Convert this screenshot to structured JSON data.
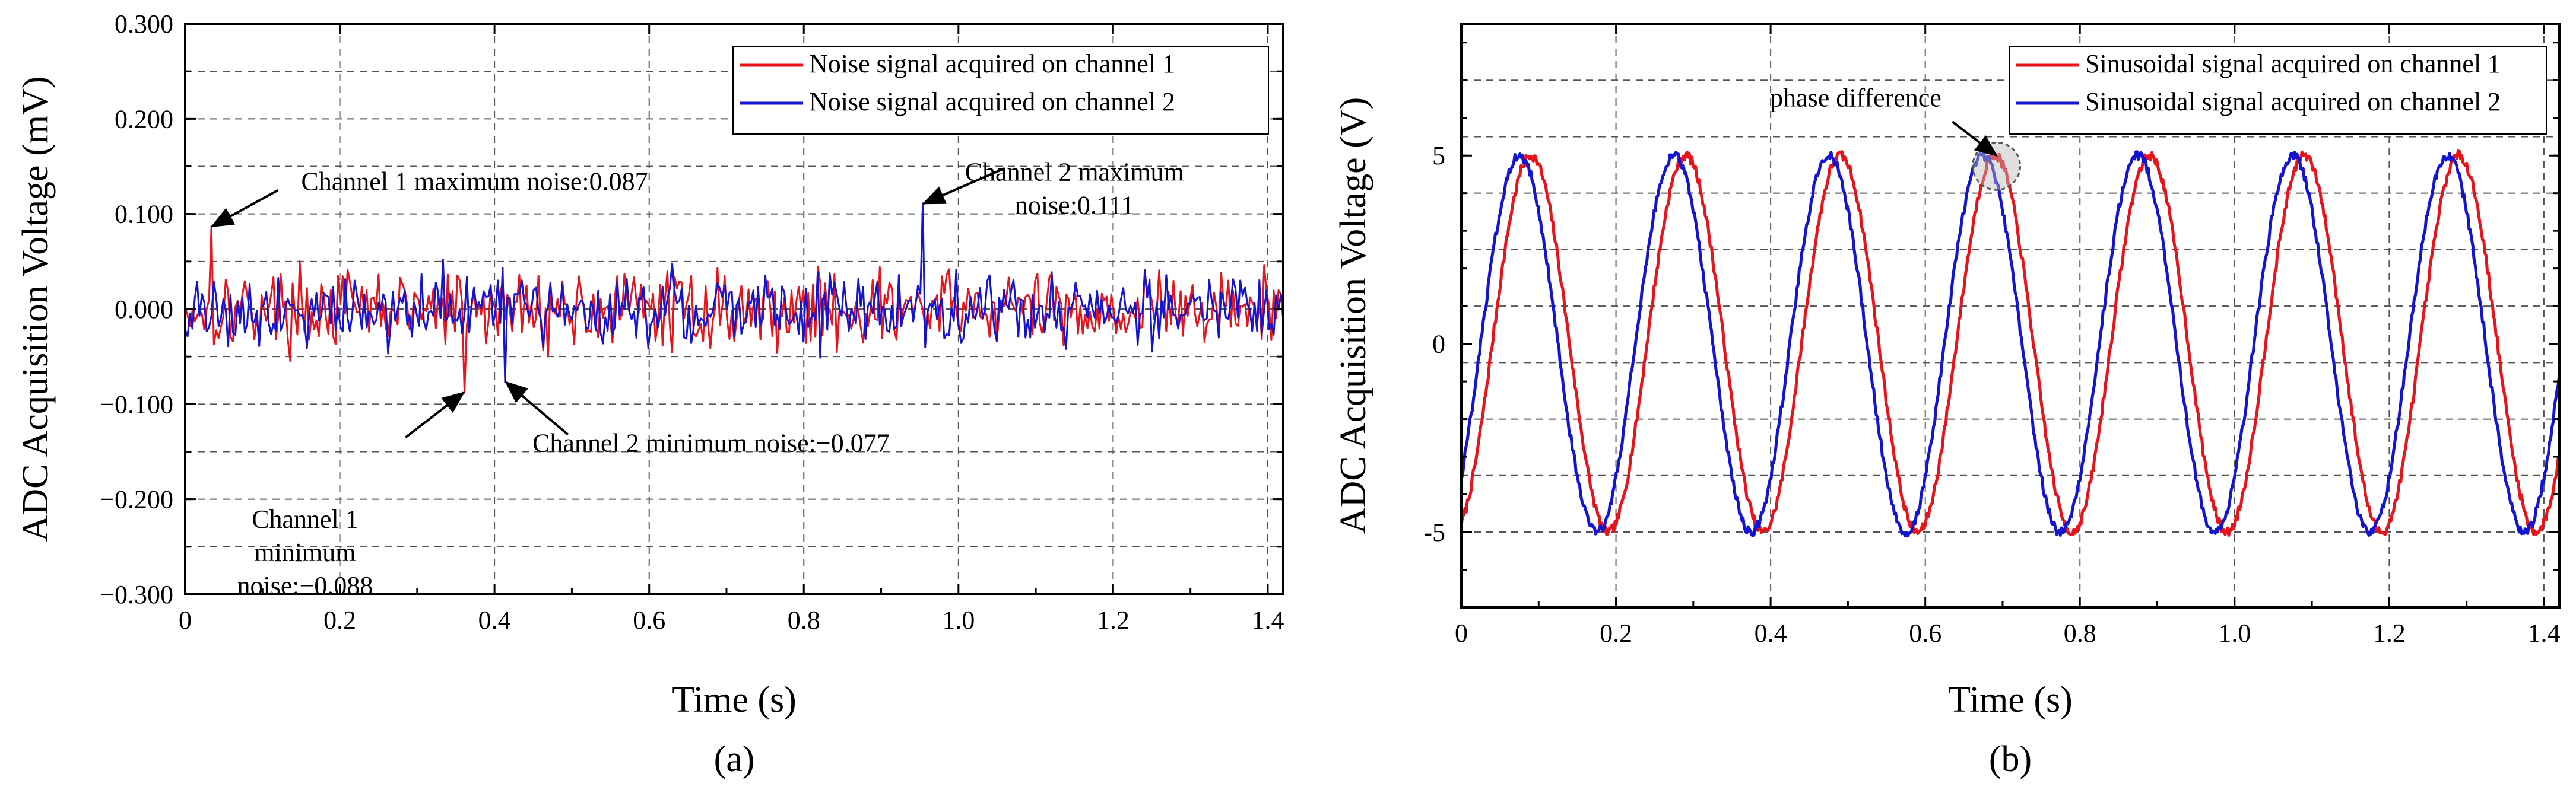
{
  "chart_data": [
    {
      "panel": "a",
      "type": "line",
      "panel_label": "(a)",
      "xlabel": "Time (s)",
      "ylabel": "ADC Acquisition Voltage (mV)",
      "xlim": [
        0,
        1.42
      ],
      "ylim": [
        -0.3,
        0.3
      ],
      "grid": true,
      "legend_position": "top-right",
      "xticks": [
        0,
        0.2,
        0.4,
        0.6,
        0.8,
        1.0,
        1.2,
        1.4
      ],
      "xtick_labels": [
        "0",
        "0.2",
        "0.4",
        "0.6",
        "0.8",
        "1.0",
        "1.2",
        "1.4"
      ],
      "yticks": [
        -0.3,
        -0.2,
        -0.1,
        0,
        0.1,
        0.2,
        0.3
      ],
      "ytick_labels": [
        "−0.300",
        "−0.200",
        "−0.100",
        "0.000",
        "0.100",
        "0.200",
        "0.300"
      ],
      "series": [
        {
          "name": "Noise signal acquired on channel 1",
          "color": "#e8141c",
          "max": 0.087,
          "max_t": 0.035,
          "min": -0.088,
          "min_t": 0.36,
          "amplitude": 0.032,
          "seed": 17
        },
        {
          "name": "Noise signal acquired on channel 2",
          "color": "#1414d2",
          "max": 0.111,
          "max_t": 0.955,
          "min": -0.077,
          "min_t": 0.415,
          "amplitude": 0.03,
          "seed": 91
        }
      ],
      "annotations": [
        {
          "id": "ch1max",
          "lines": [
            "Channel 1 maximum noise:0.087"
          ],
          "target": [
            0.035,
            0.087
          ],
          "text_at": [
            0.15,
            0.125
          ],
          "tail": [
            0.12,
            0.125
          ],
          "anchor": "start"
        },
        {
          "id": "ch2max",
          "lines": [
            "Channel 2 maximum",
            "noise:0.111"
          ],
          "target": [
            0.955,
            0.111
          ],
          "text_at": [
            1.15,
            0.135
          ],
          "tail": [
            1.06,
            0.148
          ],
          "anchor": "middle"
        },
        {
          "id": "ch1min",
          "lines": [
            "Channel 1",
            "minimum",
            "noise:−0.088"
          ],
          "target": [
            0.36,
            -0.088
          ],
          "text_at": [
            0.155,
            -0.23
          ],
          "tail": [
            0.285,
            -0.135
          ],
          "anchor": "middle"
        },
        {
          "id": "ch2min",
          "lines": [
            "Channel 2 minimum noise:−0.077"
          ],
          "target": [
            0.415,
            -0.077
          ],
          "text_at": [
            0.68,
            -0.15
          ],
          "tail": [
            0.495,
            -0.132
          ],
          "anchor": "middle"
        }
      ]
    },
    {
      "panel": "b",
      "type": "line",
      "panel_label": "(b)",
      "xlabel": "Time (s)",
      "ylabel": "ADC Acquisition  Voltage (V)",
      "xlim": [
        0,
        1.42
      ],
      "ylim": [
        -7,
        8.5
      ],
      "grid": true,
      "legend_position": "top-right",
      "xticks": [
        0,
        0.2,
        0.4,
        0.6,
        0.8,
        1.0,
        1.2,
        1.4
      ],
      "xtick_labels": [
        "0",
        "0.2",
        "0.4",
        "0.6",
        "0.8",
        "1.0",
        "1.2",
        "1.4"
      ],
      "yticks": [
        -5,
        0,
        5
      ],
      "ytick_labels": [
        "-5",
        "0",
        "5"
      ],
      "series": [
        {
          "name": "Sinusoidal signal acquired on channel 1",
          "color": "#e8141c",
          "amplitude": 5,
          "period": 0.2,
          "peak_t": 0.09
        },
        {
          "name": "Sinusoidal signal acquired on channel 2",
          "color": "#1414d2",
          "amplitude": 5,
          "period": 0.2,
          "peak_t": 0.075
        }
      ],
      "annotations": [
        {
          "id": "phase",
          "lines": [
            "phase difference"
          ],
          "target": [
            0.692,
            5.0
          ],
          "text_at": [
            0.51,
            6.3
          ],
          "tail": [
            0.635,
            5.9
          ],
          "anchor": "middle"
        }
      ]
    }
  ]
}
